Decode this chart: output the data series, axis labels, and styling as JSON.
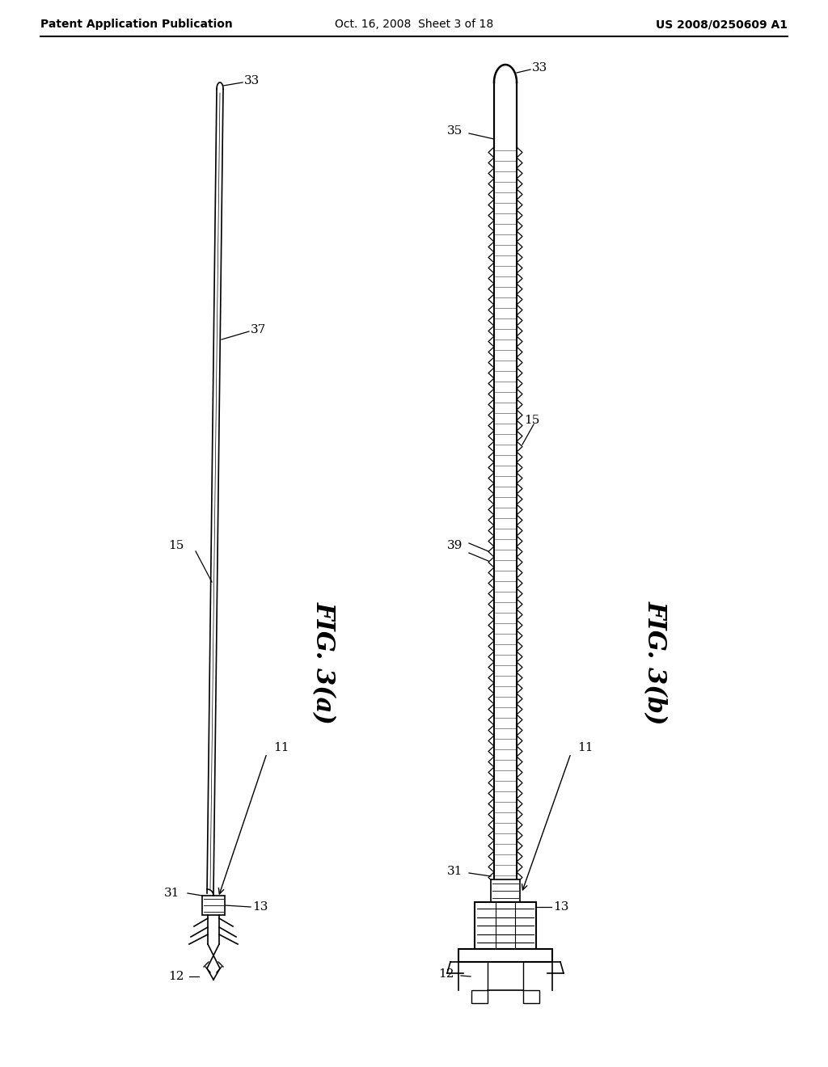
{
  "title_left": "Patent Application Publication",
  "title_center": "Oct. 16, 2008  Sheet 3 of 18",
  "title_right": "US 2008/0250609 A1",
  "fig_a_label": "FIG. 3(a)",
  "fig_b_label": "FIG. 3(b)",
  "bg_color": "#ffffff",
  "line_color": "#000000"
}
